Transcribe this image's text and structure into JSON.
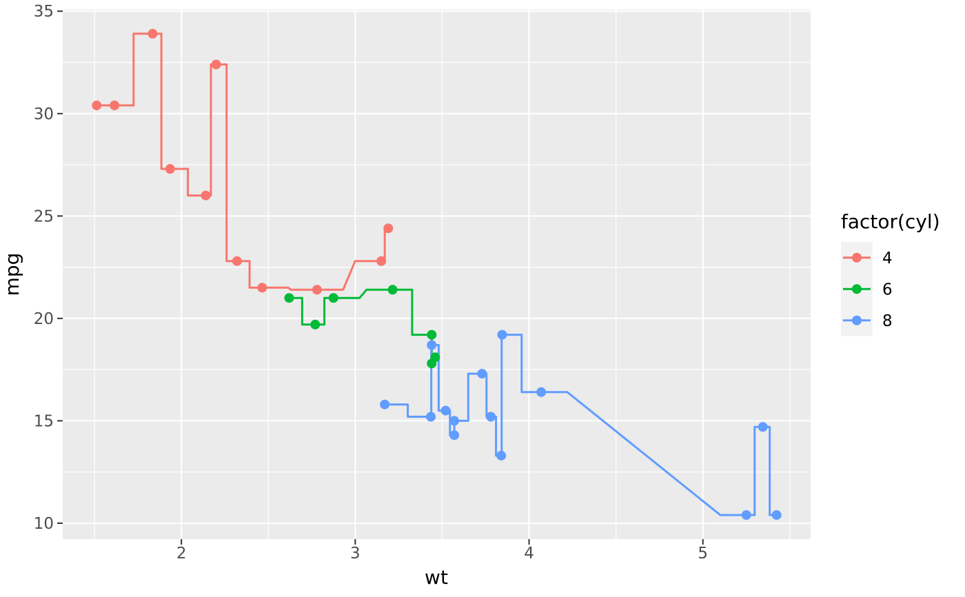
{
  "chart_data": {
    "type": "step",
    "title": "",
    "xlabel": "wt",
    "ylabel": "mpg",
    "x_ticks": [
      2,
      3,
      4,
      5
    ],
    "y_ticks": [
      10,
      15,
      20,
      25,
      30,
      35
    ],
    "x_minor_ticks": [
      1.5,
      2.5,
      3.5,
      4.5,
      5.5
    ],
    "y_minor_ticks": [
      12.5,
      17.5,
      22.5,
      27.5,
      32.5
    ],
    "xlim": [
      1.3174,
      5.6196
    ],
    "ylim": [
      9.2245,
      35.0755
    ],
    "grid": true,
    "step_direction": "mid",
    "step_max_flat_extend": 0.15,
    "legend": {
      "title": "factor(cyl)",
      "position": "right",
      "entries": [
        {
          "label": "4",
          "color": "#F8766D"
        },
        {
          "label": "6",
          "color": "#00BA38"
        },
        {
          "label": "8",
          "color": "#619CFF"
        }
      ]
    },
    "series": [
      {
        "name": "4",
        "color": "#F8766D",
        "points": [
          [
            1.513,
            30.4
          ],
          [
            1.615,
            30.4
          ],
          [
            1.835,
            33.9
          ],
          [
            1.935,
            27.3
          ],
          [
            2.14,
            26.0
          ],
          [
            2.2,
            32.4
          ],
          [
            2.32,
            22.8
          ],
          [
            2.465,
            21.5
          ],
          [
            2.78,
            21.4
          ],
          [
            3.15,
            22.8
          ],
          [
            3.19,
            24.4
          ]
        ]
      },
      {
        "name": "6",
        "color": "#00BA38",
        "points": [
          [
            2.62,
            21.0
          ],
          [
            2.77,
            19.7
          ],
          [
            2.875,
            21.0
          ],
          [
            3.215,
            21.4
          ],
          [
            3.44,
            19.2
          ],
          [
            3.44,
            17.8
          ],
          [
            3.46,
            18.1
          ]
        ]
      },
      {
        "name": "8",
        "color": "#619CFF",
        "points": [
          [
            3.17,
            15.8
          ],
          [
            3.435,
            15.2
          ],
          [
            3.44,
            18.7
          ],
          [
            3.52,
            15.5
          ],
          [
            3.57,
            14.3
          ],
          [
            3.57,
            15.0
          ],
          [
            3.73,
            17.3
          ],
          [
            3.78,
            15.2
          ],
          [
            3.84,
            13.3
          ],
          [
            3.845,
            19.2
          ],
          [
            4.07,
            16.4
          ],
          [
            5.25,
            10.4
          ],
          [
            5.345,
            14.7
          ],
          [
            5.424,
            10.4
          ]
        ]
      }
    ],
    "colors": {
      "panel_background": "#EBEBEB",
      "grid_line": "#FFFFFF",
      "tick_mark": "#333333",
      "tick_label": "#4D4D4D",
      "legend_key_background": "#F2F2F2"
    }
  }
}
